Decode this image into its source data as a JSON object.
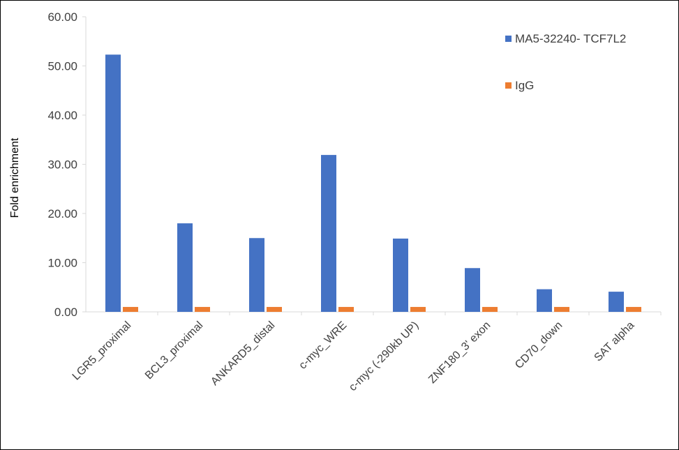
{
  "chart_data": {
    "type": "bar",
    "title": "",
    "xlabel": "",
    "ylabel": "Fold enrichment",
    "ylim": [
      0,
      60
    ],
    "yticks": [
      0,
      10,
      20,
      30,
      40,
      50,
      60
    ],
    "ytick_labels": [
      "0.00",
      "10.00",
      "20.00",
      "30.00",
      "40.00",
      "50.00",
      "60.00"
    ],
    "grid": false,
    "legend_position": "top-right",
    "categories": [
      "LGR5_proximal",
      "BCL3_proximal",
      "ANKARD5_distal",
      "c-myc_WRE",
      "c-myc (-290kb UP)",
      "ZNF180_3' exon",
      "CD70_down",
      "SAT alpha"
    ],
    "series": [
      {
        "name": "MA5-32240- TCF7L2",
        "color": "#4472C4",
        "values": [
          52.3,
          18.0,
          15.0,
          31.9,
          14.9,
          8.9,
          4.6,
          4.1
        ]
      },
      {
        "name": "IgG",
        "color": "#ED7D31",
        "values": [
          1.0,
          1.0,
          1.0,
          1.0,
          1.0,
          1.0,
          1.0,
          1.0
        ]
      }
    ]
  }
}
